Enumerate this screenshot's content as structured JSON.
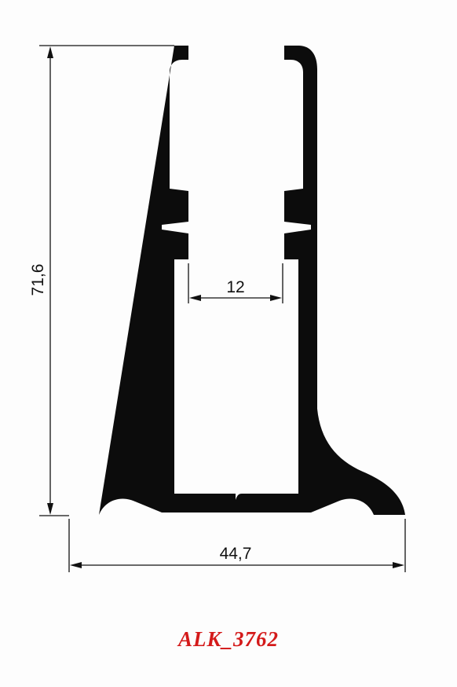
{
  "drawing": {
    "dimensions": {
      "height": "71,6",
      "inner_width": "12",
      "base_width": "44,7"
    },
    "product_code": "ALK_3762"
  },
  "colors": {
    "profile": "#0c0c0c",
    "lines": "#111111",
    "product_code": "#d41a1a",
    "background": "#fdfdfd"
  }
}
